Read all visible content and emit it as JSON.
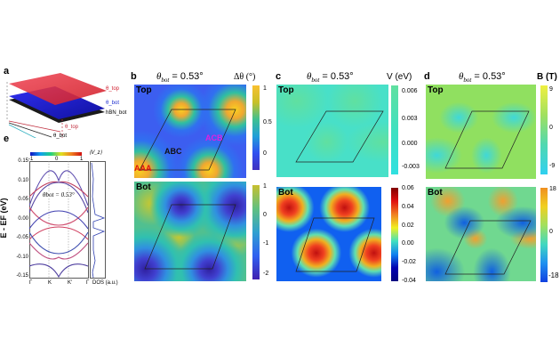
{
  "figure": {
    "panel_a": {
      "label": "a",
      "layers": [
        "θ_top",
        "θ_bot",
        "hBN_bot"
      ],
      "angle_labels": [
        "θ_top",
        "θ_bot"
      ]
    },
    "panel_e": {
      "label": "e",
      "colorbar": {
        "label": "⟨V_z⟩",
        "ticks": [
          "-1",
          "0",
          "1"
        ]
      },
      "annotation": "θbot = 0.53°",
      "ylabel": "E - EF (eV)",
      "yticks": [
        "0.15",
        "0.10",
        "0.05",
        "0.00",
        "-0.05",
        "-0.10",
        "-0.15"
      ],
      "xticks": [
        "Γ",
        "K",
        "K'",
        "Γ"
      ],
      "dos_label": "DOS (a.u.)"
    },
    "panel_b": {
      "label": "b",
      "title_sym": "θ",
      "title_sub": "bot",
      "title_val": " = 0.53°",
      "unit": "Δθ (°)",
      "top_label": "Top",
      "bot_label": "Bot",
      "stacking_labels": {
        "aaa": "AAA",
        "abc": "ABC",
        "acb": "ACB"
      },
      "top_ticks": [
        "1",
        "0.5",
        "0"
      ],
      "bot_ticks": [
        "1",
        "0",
        "-1",
        "-2"
      ]
    },
    "panel_c": {
      "label": "c",
      "title_sym": "θ",
      "title_sub": "bot",
      "title_val": " = 0.53°",
      "unit": "V (eV)",
      "top_label": "Top",
      "bot_label": "Bot",
      "top_ticks": [
        "0.006",
        "0.003",
        "0.000",
        "-0.003"
      ],
      "bot_ticks": [
        "0.06",
        "0.04",
        "0.02",
        "0.00",
        "-0.02",
        "-0.04"
      ]
    },
    "panel_d": {
      "label": "d",
      "title_sym": "θ",
      "title_sub": "bot",
      "title_val": " = 0.53°",
      "unit": "B (T)",
      "top_label": "Top",
      "bot_label": "Bot",
      "top_ticks": [
        "9",
        "0",
        "-9"
      ],
      "bot_ticks": [
        "18",
        "0",
        "-18"
      ]
    }
  },
  "colors": {
    "top_layer": "#e8323c",
    "bot_layer": "#1e2ed8",
    "hbn_layer": "#222222",
    "parula_low": "#3e26a8",
    "parula_high": "#f9fb15",
    "jet_low": "#00008f",
    "jet_high": "#800000",
    "aaa_label": "#e01010",
    "acb_label": "#e020e0"
  }
}
